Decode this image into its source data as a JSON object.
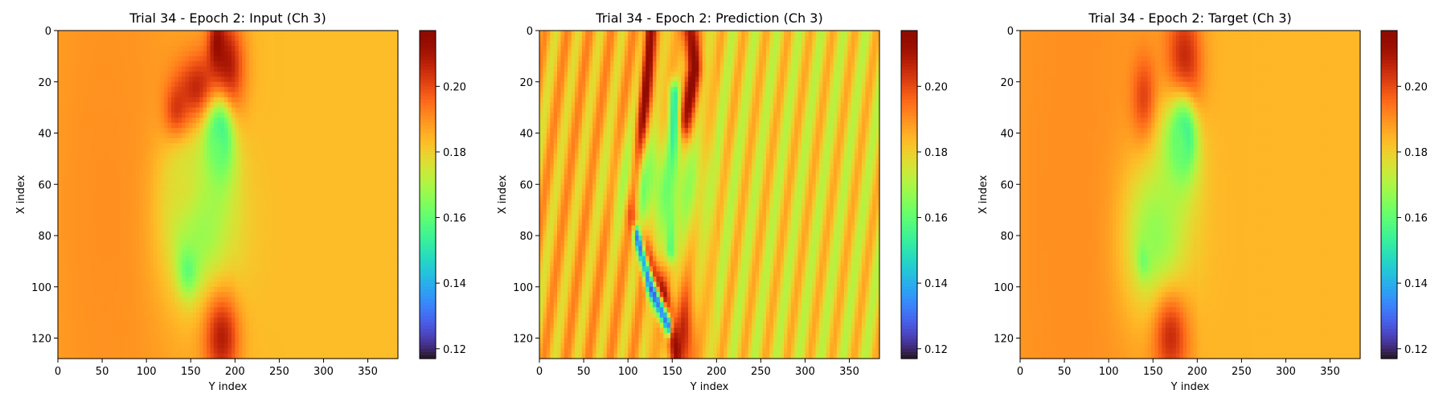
{
  "colormap": "turbo",
  "chart_data": [
    {
      "type": "heatmap",
      "title": "Trial 34 - Epoch 2: Input (Ch 3)",
      "xlabel": "Y index",
      "ylabel": "X index",
      "xlim": [
        0,
        384
      ],
      "ylim": [
        128,
        0
      ],
      "xticks": [
        0,
        50,
        100,
        150,
        200,
        250,
        300,
        350
      ],
      "yticks": [
        0,
        20,
        40,
        60,
        80,
        100,
        120
      ],
      "colorbar": {
        "min": 0.117,
        "max": 0.217,
        "ticks": [
          0.12,
          0.14,
          0.16,
          0.18,
          0.2
        ],
        "tick_labels": [
          "0.12",
          "0.14",
          "0.16",
          "0.18",
          "0.20"
        ]
      },
      "background_value": 0.183,
      "features": [
        {
          "kind": "blob",
          "y": 190,
          "x": 15,
          "ry": 14,
          "rx": 14,
          "value": 0.212
        },
        {
          "kind": "blob",
          "y": 160,
          "x": 25,
          "ry": 18,
          "rx": 10,
          "value": 0.213
        },
        {
          "kind": "blob",
          "y": 135,
          "x": 33,
          "ry": 10,
          "rx": 8,
          "value": 0.212
        },
        {
          "kind": "blob",
          "y": 180,
          "x": 6,
          "ry": 6,
          "rx": 8,
          "value": 0.215
        },
        {
          "kind": "blob",
          "y": 183,
          "x": 42,
          "ry": 8,
          "rx": 8,
          "value": 0.135
        },
        {
          "kind": "blob",
          "y": 180,
          "x": 47,
          "ry": 14,
          "rx": 14,
          "value": 0.158
        },
        {
          "kind": "blob",
          "y": 147,
          "x": 90,
          "ry": 8,
          "rx": 8,
          "value": 0.135
        },
        {
          "kind": "blob",
          "y": 155,
          "x": 75,
          "ry": 32,
          "rx": 22,
          "value": 0.165
        },
        {
          "kind": "blob",
          "y": 140,
          "x": 60,
          "ry": 18,
          "rx": 12,
          "value": 0.175
        },
        {
          "kind": "blob",
          "y": 185,
          "x": 120,
          "ry": 14,
          "rx": 12,
          "value": 0.208
        },
        {
          "kind": "blob",
          "y": 55,
          "x": 70,
          "ry": 40,
          "rx": 60,
          "value": 0.19
        }
      ]
    },
    {
      "type": "heatmap",
      "title": "Trial 34 - Epoch 2: Prediction (Ch 3)",
      "xlabel": "Y index",
      "ylabel": "X index",
      "xlim": [
        0,
        384
      ],
      "ylim": [
        128,
        0
      ],
      "xticks": [
        0,
        50,
        100,
        150,
        200,
        250,
        300,
        350
      ],
      "yticks": [
        0,
        20,
        40,
        60,
        80,
        100,
        120
      ],
      "colorbar": {
        "min": 0.117,
        "max": 0.217,
        "ticks": [
          0.12,
          0.14,
          0.16,
          0.18,
          0.2
        ],
        "tick_labels": [
          "0.12",
          "0.14",
          "0.16",
          "0.18",
          "0.20"
        ]
      },
      "background_value": 0.179,
      "features": [
        {
          "kind": "ridge",
          "points": [
            [
              125,
              0
            ],
            [
              120,
              25
            ],
            [
              112,
              50
            ],
            [
              105,
              70
            ],
            [
              115,
              85
            ],
            [
              140,
              105
            ],
            [
              155,
              125
            ]
          ],
          "width": 5,
          "value": 0.214
        },
        {
          "kind": "ridge",
          "points": [
            [
              170,
              0
            ],
            [
              175,
              15
            ],
            [
              165,
              35
            ]
          ],
          "width": 6,
          "value": 0.214
        },
        {
          "kind": "ridge",
          "points": [
            [
              110,
              80
            ],
            [
              125,
              100
            ],
            [
              145,
              115
            ]
          ],
          "width": 3,
          "value": 0.13
        },
        {
          "kind": "ridge",
          "points": [
            [
              152,
              25
            ],
            [
              150,
              60
            ],
            [
              148,
              85
            ]
          ],
          "width": 4,
          "value": 0.15
        },
        {
          "kind": "blob",
          "y": 140,
          "x": 60,
          "ry": 35,
          "rx": 14,
          "value": 0.165
        },
        {
          "kind": "blob",
          "y": 165,
          "x": 120,
          "ry": 8,
          "rx": 14,
          "value": 0.205
        },
        {
          "kind": "stripes",
          "period": 25,
          "amplitude": 0.008
        }
      ]
    },
    {
      "type": "heatmap",
      "title": "Trial 34 - Epoch 2: Target (Ch 3)",
      "xlabel": "Y index",
      "ylabel": "X index",
      "xlim": [
        0,
        384
      ],
      "ylim": [
        128,
        0
      ],
      "xticks": [
        0,
        50,
        100,
        150,
        200,
        250,
        300,
        350
      ],
      "yticks": [
        0,
        20,
        40,
        60,
        80,
        100,
        120
      ],
      "colorbar": {
        "min": 0.117,
        "max": 0.217,
        "ticks": [
          0.12,
          0.14,
          0.16,
          0.18,
          0.2
        ],
        "tick_labels": [
          "0.12",
          "0.14",
          "0.16",
          "0.18",
          "0.20"
        ]
      },
      "background_value": 0.184,
      "features": [
        {
          "kind": "blob",
          "y": 185,
          "x": 18,
          "ry": 14,
          "rx": 18,
          "value": 0.212
        },
        {
          "kind": "blob",
          "y": 140,
          "x": 28,
          "ry": 10,
          "rx": 12,
          "value": 0.205
        },
        {
          "kind": "blob",
          "y": 185,
          "x": 42,
          "ry": 8,
          "rx": 8,
          "value": 0.122
        },
        {
          "kind": "blob",
          "y": 180,
          "x": 45,
          "ry": 16,
          "rx": 16,
          "value": 0.16
        },
        {
          "kind": "blob",
          "y": 140,
          "x": 88,
          "ry": 5,
          "rx": 5,
          "value": 0.12
        },
        {
          "kind": "blob",
          "y": 150,
          "x": 80,
          "ry": 28,
          "rx": 22,
          "value": 0.165
        },
        {
          "kind": "blob",
          "y": 170,
          "x": 120,
          "ry": 14,
          "rx": 12,
          "value": 0.205
        },
        {
          "kind": "blob",
          "y": 55,
          "x": 70,
          "ry": 40,
          "rx": 60,
          "value": 0.19
        }
      ]
    }
  ]
}
